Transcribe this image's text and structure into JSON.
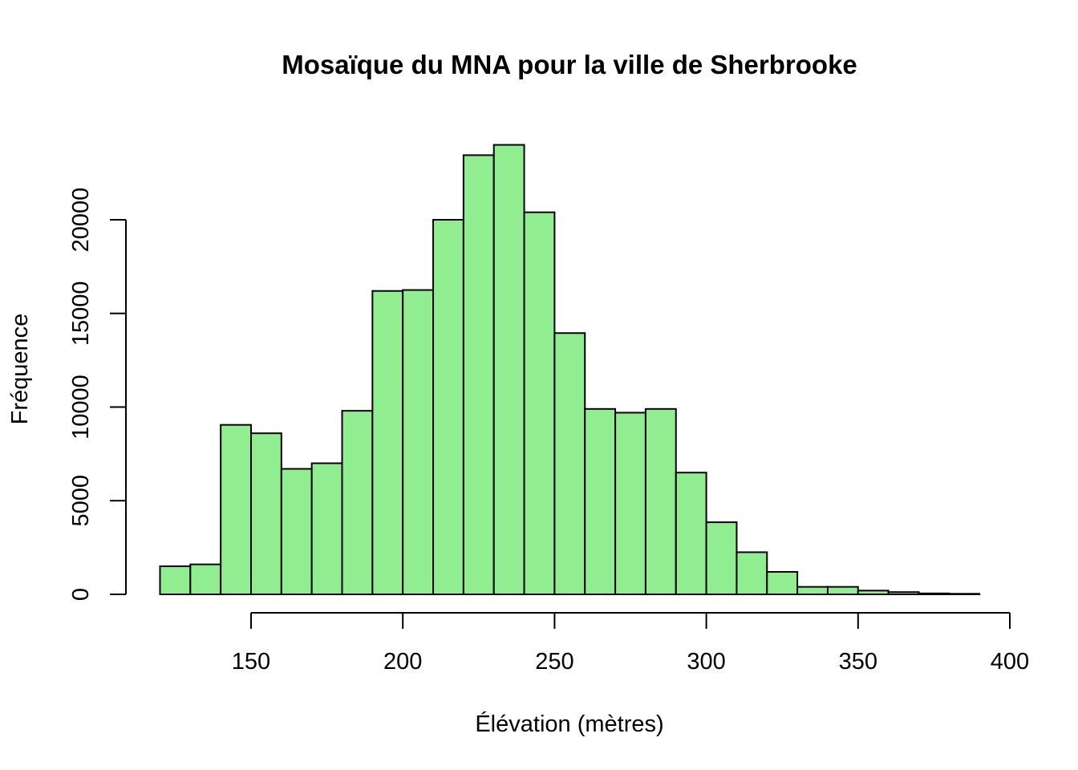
{
  "chart_data": {
    "type": "bar",
    "title": "Mosaïque du MNA pour la ville de Sherbrooke",
    "xlabel": "Élévation (mètres)",
    "ylabel": "Fréquence",
    "bin_width": 10,
    "bins_start": [
      120,
      130,
      140,
      150,
      160,
      170,
      180,
      190,
      200,
      210,
      220,
      230,
      240,
      250,
      260,
      270,
      280,
      290,
      300,
      310,
      320,
      330,
      340,
      350,
      360,
      370,
      380
    ],
    "values": [
      1500,
      1600,
      9050,
      8600,
      6700,
      7000,
      9800,
      16200,
      16250,
      20000,
      23450,
      24000,
      20400,
      13950,
      9900,
      9700,
      9900,
      6500,
      3850,
      2250,
      1200,
      400,
      400,
      200,
      120,
      50,
      30
    ],
    "xlim": [
      100,
      400
    ],
    "ylim": [
      0,
      24000
    ],
    "x_ticks": [
      150,
      200,
      250,
      300,
      350,
      400
    ],
    "y_ticks": [
      0,
      5000,
      10000,
      15000,
      20000
    ],
    "grid": false,
    "colors": {
      "bar_fill": "#90ee90",
      "bar_stroke": "#000000"
    }
  }
}
